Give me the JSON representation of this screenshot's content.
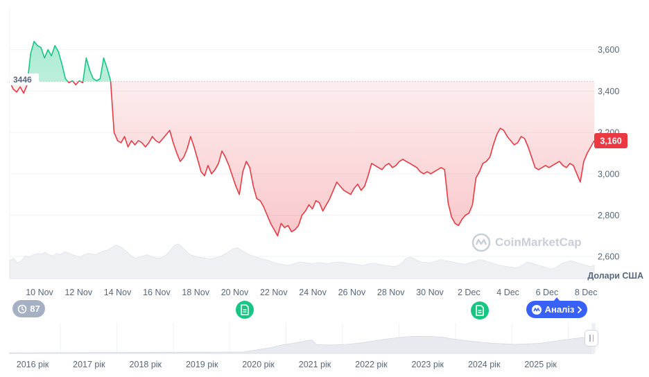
{
  "chart_data": {
    "type": "area",
    "ylim": [
      2500,
      3800
    ],
    "y_ticks": [
      "3,600",
      "3,400",
      "3,200",
      "3,000",
      "2,800",
      "2,600"
    ],
    "y_tick_values": [
      3600,
      3400,
      3200,
      3000,
      2800,
      2600
    ],
    "x_tick_labels": [
      "10 Nov",
      "12 Nov",
      "14 Nov",
      "16 Nov",
      "18 Nov",
      "20 Nov",
      "22 Nov",
      "24 Nov",
      "26 Nov",
      "28 Nov",
      "30 Nov",
      "2 Dec",
      "4 Dec",
      "6 Dec",
      "8 Dec"
    ],
    "reference_value": 3446,
    "reference_label": "3446",
    "current_value": 3160,
    "current_label": "3,160",
    "unit_label": "Долари США",
    "colors": {
      "above": "#16c784",
      "below": "#ea3943",
      "label_current": "#ea3943"
    },
    "series": [
      {
        "values": [
          3446,
          3410,
          3395,
          3420,
          3390,
          3430,
          3580,
          3640,
          3620,
          3610,
          3560,
          3600,
          3570,
          3620,
          3590,
          3530,
          3460,
          3440,
          3450,
          3430,
          3450,
          3440,
          3560,
          3500,
          3460,
          3450,
          3460,
          3560,
          3510,
          3450,
          3200,
          3160,
          3150,
          3180,
          3130,
          3160,
          3140,
          3160,
          3150,
          3130,
          3150,
          3180,
          3160,
          3150,
          3170,
          3190,
          3210,
          3150,
          3100,
          3060,
          3080,
          3120,
          3180,
          3130,
          3070,
          3010,
          2990,
          3040,
          3000,
          3020,
          3050,
          3110,
          3080,
          3040,
          2990,
          2940,
          2900,
          3010,
          3060,
          3030,
          2940,
          2880,
          2870,
          2840,
          2800,
          2760,
          2730,
          2700,
          2760,
          2740,
          2750,
          2720,
          2730,
          2750,
          2800,
          2820,
          2850,
          2830,
          2870,
          2860,
          2820,
          2850,
          2880,
          2920,
          2960,
          2940,
          2920,
          2910,
          2900,
          2930,
          2950,
          2920,
          2940,
          2990,
          3050,
          3040,
          3030,
          3020,
          3040,
          3050,
          3030,
          3040,
          3060,
          3070,
          3060,
          3050,
          3040,
          3030,
          3010,
          3000,
          3010,
          3000,
          3010,
          3020,
          3030,
          3020,
          2860,
          2790,
          2760,
          2750,
          2780,
          2800,
          2810,
          2850,
          2980,
          3010,
          3050,
          3060,
          3080,
          3140,
          3190,
          3220,
          3210,
          3180,
          3160,
          3140,
          3150,
          3180,
          3170,
          3130,
          3080,
          3030,
          3020,
          3030,
          3040,
          3030,
          3040,
          3050,
          3060,
          3040,
          3030,
          3050,
          3040,
          3000,
          2960,
          3060,
          3100,
          3130,
          3160
        ]
      }
    ],
    "volume": [
      30,
      34,
      26,
      30,
      38,
      36,
      40,
      42,
      41,
      44,
      40,
      38,
      42,
      40,
      45,
      43,
      40,
      38,
      36,
      40,
      42,
      41,
      40,
      44,
      46,
      48,
      52,
      56,
      54,
      50,
      44,
      38,
      34,
      36,
      38,
      40,
      37,
      35,
      34,
      36,
      40,
      48,
      56,
      58,
      52,
      46,
      40,
      38,
      36,
      35,
      34,
      33,
      34,
      36,
      38,
      42,
      46,
      50,
      52,
      48,
      44,
      40,
      38,
      36,
      34,
      32,
      30,
      28,
      26,
      24,
      23,
      22,
      24,
      26,
      28,
      27,
      26,
      25,
      26,
      27,
      26,
      25,
      26,
      27,
      28,
      27,
      26,
      25,
      24,
      23,
      22,
      24,
      25,
      26,
      24,
      23,
      22,
      21,
      20,
      22,
      26,
      34,
      36,
      34,
      30,
      28,
      27,
      26,
      28,
      30,
      32,
      30,
      29,
      28,
      26,
      25,
      24,
      26,
      28,
      30,
      32,
      30,
      28,
      26,
      24,
      22,
      21,
      20,
      19,
      18,
      20,
      24,
      28,
      26,
      24,
      22,
      20,
      18,
      16,
      18,
      22,
      26,
      28,
      30,
      28,
      26,
      24,
      22,
      20,
      22
    ],
    "navigator": {
      "year_labels": [
        "2016 рік",
        "2017 рік",
        "2018 рік",
        "2019 рік",
        "2020 рік",
        "2021 рік",
        "2022 рік",
        "2023 рік",
        "2024 рік",
        "2025 рік"
      ]
    }
  },
  "controls": {
    "history_count": "87",
    "analysis_label": "Аналіз"
  },
  "brand": {
    "watermark_text": "CoinMarketCap"
  }
}
